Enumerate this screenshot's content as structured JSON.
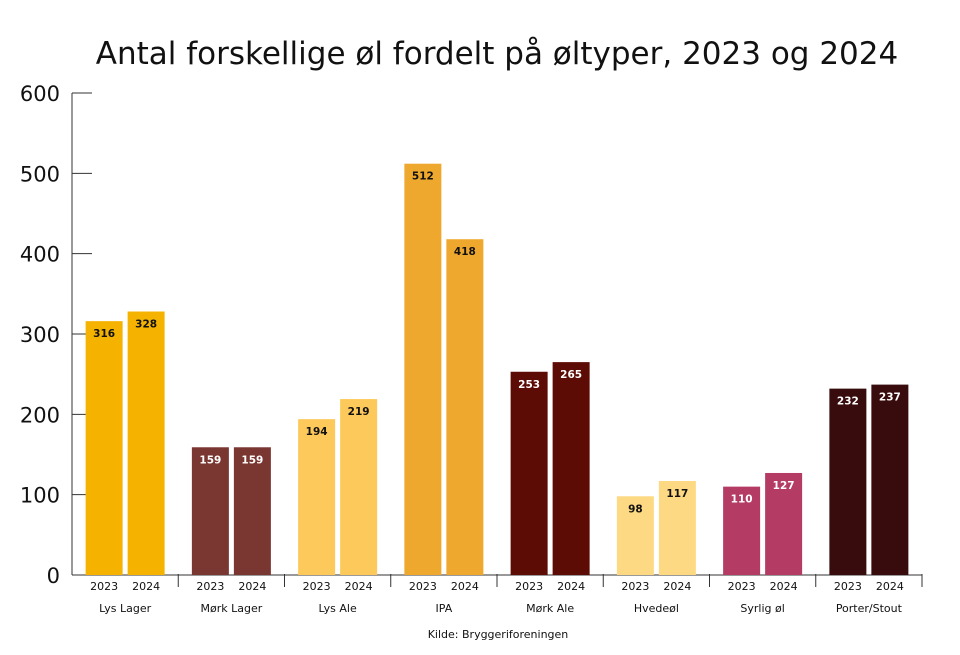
{
  "chart_data": {
    "type": "bar",
    "title": "Antal forskellige øl fordelt på øltyper, 2023 og 2024",
    "source": "Kilde: Bryggeriforeningen",
    "ylim": [
      0,
      600
    ],
    "yticks": [
      0,
      100,
      200,
      300,
      400,
      500,
      600
    ],
    "grid": false,
    "legend": "none",
    "series_years": [
      "2023",
      "2024"
    ],
    "categories": [
      {
        "name": "Lys Lager",
        "values": [
          316,
          328
        ],
        "color": "#f5b300",
        "label_color": "#111111"
      },
      {
        "name": "Mørk Lager",
        "values": [
          159,
          159
        ],
        "color": "#7a3630",
        "label_color": "#ffffff"
      },
      {
        "name": "Lys Ale",
        "values": [
          194,
          219
        ],
        "color": "#fdc95a",
        "label_color": "#111111"
      },
      {
        "name": "IPA",
        "values": [
          512,
          418
        ],
        "color": "#eea82e",
        "label_color": "#111111"
      },
      {
        "name": "Mørk Ale",
        "values": [
          253,
          265
        ],
        "color": "#5d0c05",
        "label_color": "#ffffff"
      },
      {
        "name": "Hvedeøl",
        "values": [
          98,
          117
        ],
        "color": "#fdd983",
        "label_color": "#111111"
      },
      {
        "name": "Syrlig øl",
        "values": [
          110,
          127
        ],
        "color": "#b43c64",
        "label_color": "#ffffff"
      },
      {
        "name": "Porter/Stout",
        "values": [
          232,
          237
        ],
        "color": "#380b0c",
        "label_color": "#ffffff"
      }
    ]
  }
}
